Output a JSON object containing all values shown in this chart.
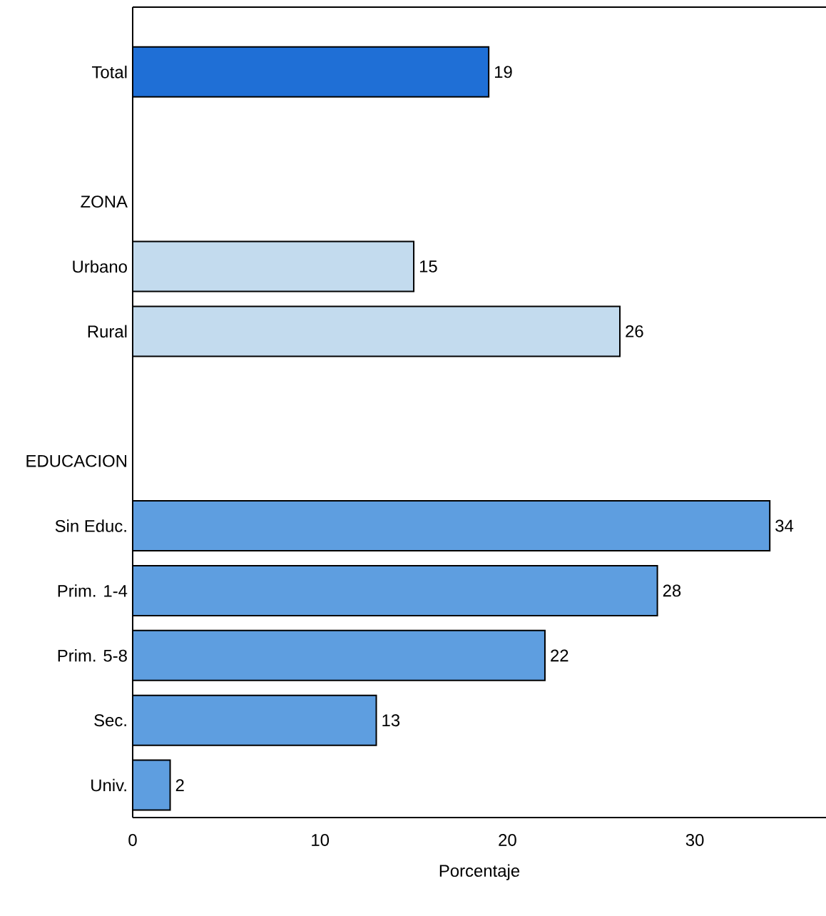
{
  "chart_data": {
    "type": "bar",
    "orientation": "horizontal",
    "xlabel": "Porcentaje",
    "categories": [
      "Total",
      null,
      "ZONA",
      "Urbano",
      "Rural",
      null,
      "EDUCACION",
      "Sin Educ.",
      "Prim. 1-4",
      "Prim. 5-8",
      "Sec.",
      "Univ."
    ],
    "values": [
      19,
      null,
      null,
      15,
      26,
      null,
      null,
      34,
      28,
      22,
      13,
      2
    ],
    "colors": [
      "#1f6fd6",
      null,
      null,
      "#c3dbee",
      null,
      null,
      null,
      "#5e9ee0",
      "#5e9ee0",
      "#5e9ee0",
      "#5e9ee0",
      "#5e9ee0"
    ],
    "data_labels": true,
    "xlim": [
      0,
      37
    ],
    "xticks": [
      0,
      10,
      20,
      30
    ]
  }
}
